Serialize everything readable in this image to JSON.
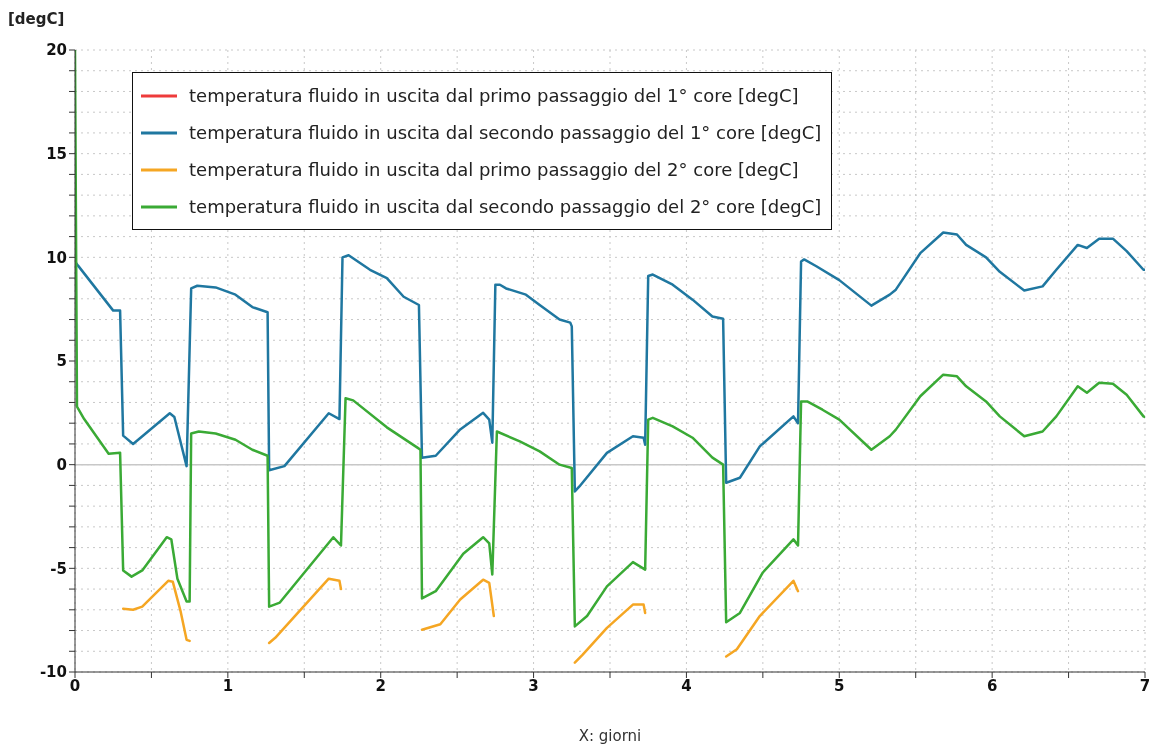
{
  "chart_data": {
    "type": "line",
    "xlabel": "X: giorni",
    "ylabel": "[degC]",
    "xlim": [
      0,
      7
    ],
    "ylim": [
      -10,
      20
    ],
    "xticks": [
      0,
      {
        "value": 0.5,
        "label": null
      },
      1,
      {
        "value": 1.5,
        "label": null
      },
      2,
      {
        "value": 2.5,
        "label": null
      },
      3,
      {
        "value": 3.5,
        "label": null
      },
      4,
      {
        "value": 4.5,
        "label": null
      },
      5,
      {
        "value": 5.5,
        "label": null
      },
      6,
      {
        "value": 6.5,
        "label": null
      },
      7
    ],
    "yticks": [
      -10,
      {
        "value": -9,
        "label": null
      },
      {
        "value": -8,
        "label": null
      },
      {
        "value": -7,
        "label": null
      },
      {
        "value": -6,
        "label": null
      },
      -5,
      {
        "value": -4,
        "label": null
      },
      {
        "value": -3,
        "label": null
      },
      {
        "value": -2,
        "label": null
      },
      {
        "value": -1,
        "label": null
      },
      0,
      {
        "value": 1,
        "label": null
      },
      {
        "value": 2,
        "label": null
      },
      {
        "value": 3,
        "label": null
      },
      {
        "value": 4,
        "label": null
      },
      5,
      {
        "value": 6,
        "label": null
      },
      {
        "value": 7,
        "label": null
      },
      {
        "value": 8,
        "label": null
      },
      {
        "value": 9,
        "label": null
      },
      10,
      {
        "value": 11,
        "label": null
      },
      {
        "value": 12,
        "label": null
      },
      {
        "value": 13,
        "label": null
      },
      {
        "value": 14,
        "label": null
      },
      15,
      {
        "value": 16,
        "label": null
      },
      {
        "value": 17,
        "label": null
      },
      {
        "value": 18,
        "label": null
      },
      {
        "value": 19,
        "label": null
      },
      20
    ],
    "grid": true,
    "legend": "top left",
    "marker": "none",
    "line_style": "solid",
    "ref_lines": [
      {
        "axis": "y",
        "value": 0,
        "color": "#c8c8c8"
      }
    ],
    "series": [
      {
        "name": "temperatura fluido in uscita dal primo passaggio del 1° core [degC]",
        "color": "#ee3b3b"
      },
      {
        "name": "temperatura fluido in uscita dal secondo passaggio del 1° core [degC]",
        "color": "#1f77a0",
        "x": [
          0,
          0.02,
          0.25,
          0.295,
          0.315,
          0.38,
          0.62,
          0.65,
          0.73,
          0.76,
          0.8,
          0.92,
          1.05,
          1.16,
          1.26,
          1.27,
          1.37,
          1.66,
          1.73,
          1.75,
          1.79,
          1.93,
          2.04,
          2.15,
          2.25,
          2.27,
          2.36,
          2.52,
          2.67,
          2.71,
          2.73,
          2.75,
          2.78,
          2.82,
          2.95,
          3.04,
          3.17,
          3.24,
          3.25,
          3.27,
          3.3,
          3.48,
          3.65,
          3.72,
          3.73,
          3.75,
          3.78,
          3.91,
          4.04,
          4.17,
          4.24,
          4.26,
          4.35,
          4.48,
          4.7,
          4.73,
          4.75,
          4.77,
          4.85,
          5.0,
          5.21,
          5.33,
          5.37,
          5.53,
          5.68,
          5.77,
          5.83,
          5.96,
          6.05,
          6.21,
          6.33,
          6.42,
          6.56,
          6.62,
          6.7,
          6.79,
          6.88,
          6.99,
          7
        ],
        "values": [
          9.8,
          9.6,
          7.43,
          7.43,
          1.4,
          1.0,
          2.48,
          2.3,
          -0.07,
          8.5,
          8.63,
          8.55,
          8.2,
          7.6,
          7.35,
          -0.27,
          -0.07,
          2.48,
          2.2,
          10.0,
          10.1,
          9.4,
          9.0,
          8.1,
          7.7,
          0.33,
          0.43,
          1.7,
          2.5,
          2.17,
          1.06,
          8.68,
          8.68,
          8.5,
          8.2,
          7.7,
          7.0,
          6.85,
          6.67,
          -1.29,
          -1.05,
          0.57,
          1.37,
          1.3,
          0.96,
          9.1,
          9.17,
          8.68,
          7.96,
          7.15,
          7.04,
          -0.87,
          -0.63,
          0.88,
          2.33,
          2.0,
          9.8,
          9.9,
          9.57,
          8.9,
          7.67,
          8.2,
          8.44,
          10.2,
          11.2,
          11.1,
          10.6,
          10.0,
          9.3,
          8.4,
          8.6,
          9.4,
          10.6,
          10.45,
          10.9,
          10.9,
          10.3,
          9.4,
          9.4
        ]
      },
      {
        "name": "temperatura fluido in uscita dal primo passaggio del 2° core [degC]",
        "color": "#f5a623",
        "x": [
          0.315,
          0.38,
          0.44,
          0.61,
          0.64,
          0.69,
          0.73,
          0.75,
          1.0,
          1.27,
          1.31,
          1.66,
          1.73,
          1.74,
          2.0,
          2.27,
          2.39,
          2.52,
          2.67,
          2.71,
          2.74,
          3.0,
          3.27,
          3.32,
          3.48,
          3.65,
          3.72,
          3.73,
          4.0,
          4.26,
          4.33,
          4.48,
          4.7,
          4.73
        ],
        "values": [
          -6.95,
          -7.0,
          -6.85,
          -5.6,
          -5.65,
          -7.05,
          -8.45,
          -8.5,
          null,
          -8.6,
          -8.35,
          -5.5,
          -5.6,
          -6.0,
          null,
          -7.96,
          -7.7,
          -6.5,
          -5.55,
          -5.7,
          -7.3,
          null,
          -9.55,
          -9.17,
          -7.87,
          -6.75,
          -6.75,
          -7.15,
          null,
          -9.25,
          -8.9,
          -7.3,
          -5.6,
          -6.1
        ]
      },
      {
        "name": "temperatura fluido in uscita dal secondo passaggio del 2° core [degC]",
        "color": "#3aaa35",
        "x": [
          0,
          0.013,
          0.06,
          0.22,
          0.295,
          0.315,
          0.37,
          0.44,
          0.6,
          0.63,
          0.67,
          0.73,
          0.75,
          0.76,
          0.81,
          0.92,
          1.05,
          1.16,
          1.26,
          1.27,
          1.34,
          1.69,
          1.74,
          1.77,
          1.82,
          2.04,
          2.24,
          2.26,
          2.27,
          2.36,
          2.54,
          2.67,
          2.71,
          2.73,
          2.76,
          2.91,
          3.04,
          3.17,
          3.25,
          3.27,
          3.35,
          3.48,
          3.65,
          3.73,
          3.75,
          3.78,
          3.91,
          4.04,
          4.17,
          4.24,
          4.26,
          4.35,
          4.5,
          4.7,
          4.73,
          4.75,
          4.79,
          4.89,
          5.0,
          5.21,
          5.33,
          5.37,
          5.53,
          5.68,
          5.77,
          5.83,
          5.96,
          6.05,
          6.21,
          6.33,
          6.42,
          6.56,
          6.62,
          6.7,
          6.79,
          6.88,
          6.99,
          7
        ],
        "values": [
          20,
          2.8,
          2.2,
          0.53,
          0.58,
          -5.1,
          -5.4,
          -5.1,
          -3.5,
          -3.6,
          -5.5,
          -6.6,
          -6.6,
          1.5,
          1.6,
          1.5,
          1.2,
          0.72,
          0.43,
          -6.85,
          -6.65,
          -3.5,
          -3.9,
          3.2,
          3.1,
          1.8,
          0.82,
          0.72,
          -6.45,
          -6.1,
          -4.3,
          -3.5,
          -3.8,
          -5.3,
          1.6,
          1.12,
          0.64,
          0,
          -0.16,
          -7.8,
          -7.3,
          -5.87,
          -4.7,
          -5.06,
          2.17,
          2.26,
          1.85,
          1.3,
          0.34,
          0,
          -7.6,
          -7.15,
          -5.2,
          -3.6,
          -3.9,
          3.05,
          3.05,
          2.65,
          2.17,
          0.72,
          1.37,
          1.69,
          3.3,
          4.34,
          4.26,
          3.78,
          3.05,
          2.33,
          1.37,
          1.6,
          2.33,
          3.78,
          3.47,
          3.95,
          3.9,
          3.37,
          2.33,
          2.3
        ]
      }
    ]
  }
}
